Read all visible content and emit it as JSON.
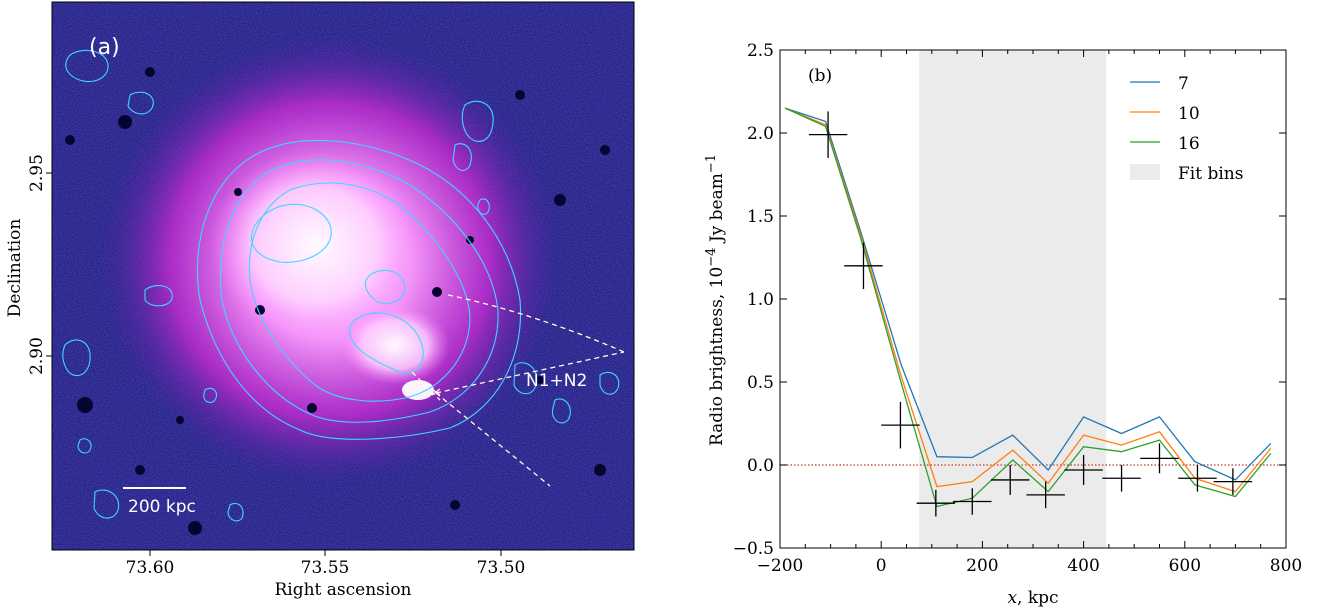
{
  "panel_a": {
    "label": "(a)",
    "xlabel": "Right ascension",
    "ylabel": "Declination",
    "x_ticks": [
      "73.60",
      "73.55",
      "73.50"
    ],
    "y_ticks": [
      "2.95",
      "2.90"
    ],
    "scalebar_label": "200 kpc",
    "region_label": "N1+N2",
    "colors": {
      "background": "#10106e",
      "glow": "#ff4dff",
      "core": "#fff0ff",
      "contour": "#3fd6ff",
      "region": "#ffffe0"
    }
  },
  "chart_data": {
    "type": "line",
    "panel_label": "(b)",
    "xlabel": "x, kpc",
    "ylabel": "Radio brightness, 10^−4 Jy beam^−1",
    "xlim": [
      -200,
      800
    ],
    "ylim": [
      -0.5,
      2.5
    ],
    "x_ticks": [
      -200,
      0,
      200,
      400,
      600,
      800
    ],
    "y_ticks": [
      -0.5,
      0.0,
      0.5,
      1.0,
      1.5,
      2.0,
      2.5
    ],
    "x_tick_labels": [
      "−200",
      "0",
      "200",
      "400",
      "600",
      "800"
    ],
    "y_tick_labels": [
      "−0.5",
      "0.0",
      "0.5",
      "1.0",
      "1.5",
      "2.0",
      "2.5"
    ],
    "fit_bins": {
      "name": "Fit bins",
      "x_range": [
        75,
        445
      ],
      "color": "#ebebeb"
    },
    "zero_line": {
      "y": 0,
      "color": "#c0392b"
    },
    "legend_position": "top-right",
    "series": [
      {
        "name": "7",
        "color": "#1f77b4",
        "x": [
          -190,
          -110,
          -40,
          40,
          110,
          180,
          260,
          330,
          400,
          475,
          550,
          620,
          700,
          770
        ],
        "y": [
          2.15,
          2.07,
          1.4,
          0.6,
          0.05,
          0.045,
          0.18,
          -0.03,
          0.29,
          0.19,
          0.29,
          0.02,
          -0.09,
          0.13
        ]
      },
      {
        "name": "10",
        "color": "#ff7f0e",
        "x": [
          -190,
          -110,
          -40,
          40,
          110,
          180,
          260,
          330,
          400,
          475,
          550,
          620,
          700,
          770
        ],
        "y": [
          2.15,
          2.05,
          1.38,
          0.53,
          -0.13,
          -0.1,
          0.09,
          -0.11,
          0.18,
          0.12,
          0.2,
          -0.08,
          -0.16,
          0.1
        ]
      },
      {
        "name": "16",
        "color": "#2ca02c",
        "x": [
          -190,
          -110,
          -40,
          40,
          110,
          180,
          260,
          330,
          400,
          475,
          550,
          620,
          700,
          770
        ],
        "y": [
          2.15,
          2.04,
          1.36,
          0.49,
          -0.25,
          -0.2,
          0.03,
          -0.16,
          0.11,
          0.08,
          0.15,
          -0.12,
          -0.19,
          0.07
        ]
      }
    ],
    "points": [
      {
        "x": -105,
        "xerr": 38,
        "y": 1.99,
        "yerr": 0.14
      },
      {
        "x": -35,
        "xerr": 38,
        "y": 1.2,
        "yerr": 0.14
      },
      {
        "x": 38,
        "xerr": 38,
        "y": 0.24,
        "yerr": 0.14
      },
      {
        "x": 108,
        "xerr": 38,
        "y": -0.23,
        "yerr": 0.08
      },
      {
        "x": 180,
        "xerr": 38,
        "y": -0.22,
        "yerr": 0.08
      },
      {
        "x": 255,
        "xerr": 38,
        "y": -0.09,
        "yerr": 0.09
      },
      {
        "x": 325,
        "xerr": 38,
        "y": -0.18,
        "yerr": 0.08
      },
      {
        "x": 400,
        "xerr": 38,
        "y": -0.03,
        "yerr": 0.09
      },
      {
        "x": 475,
        "xerr": 38,
        "y": -0.08,
        "yerr": 0.08
      },
      {
        "x": 550,
        "xerr": 38,
        "y": 0.04,
        "yerr": 0.09
      },
      {
        "x": 625,
        "xerr": 38,
        "y": -0.08,
        "yerr": 0.08
      },
      {
        "x": 695,
        "xerr": 38,
        "y": -0.1,
        "yerr": 0.08
      }
    ]
  }
}
